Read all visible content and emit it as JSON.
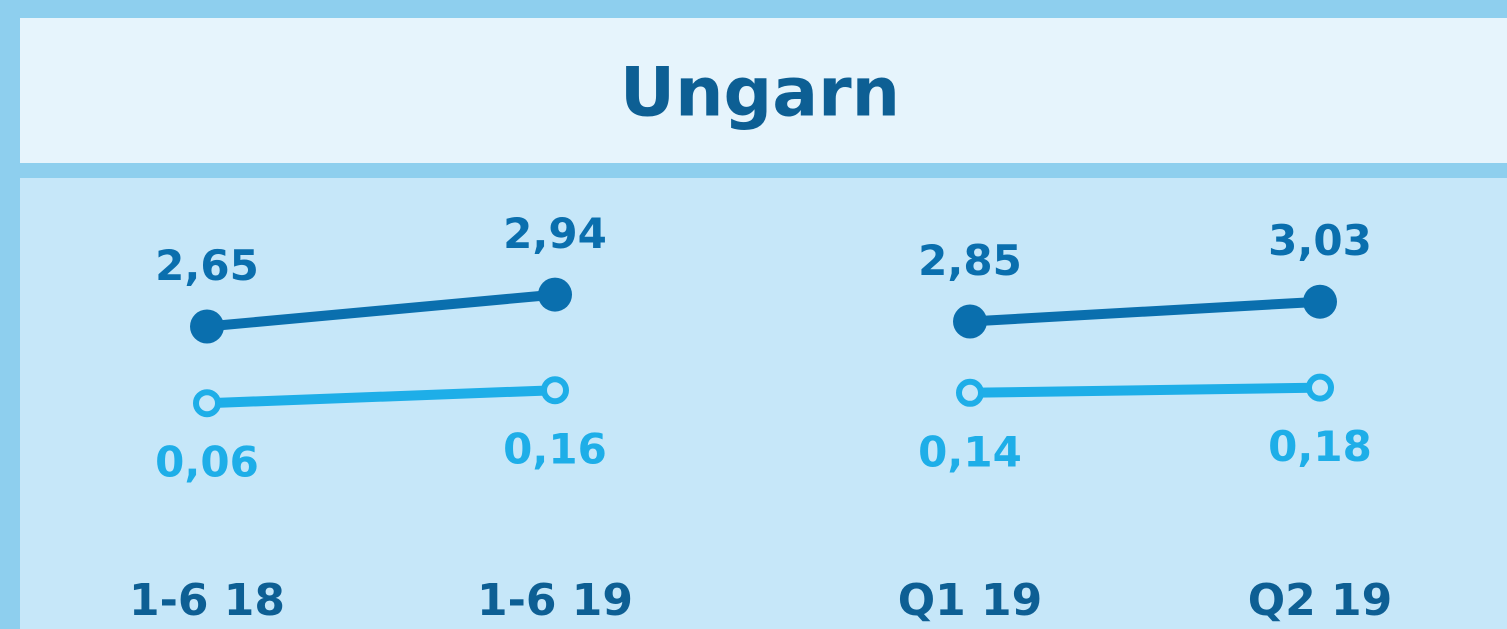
{
  "title": "Ungarn",
  "chart_data": [
    {
      "type": "line",
      "categories": [
        "1-6 18",
        "1-6 19"
      ],
      "series": [
        {
          "color": "#0a6fae",
          "values": [
            2.65,
            2.94
          ],
          "value_labels": [
            "2,65",
            "2,94"
          ],
          "marker": "filled"
        },
        {
          "color": "#1eaee8",
          "values": [
            0.06,
            0.16
          ],
          "value_labels": [
            "0,06",
            "0,16"
          ],
          "marker": "open"
        }
      ]
    },
    {
      "type": "line",
      "categories": [
        "Q1 19",
        "Q2 19"
      ],
      "series": [
        {
          "color": "#0a6fae",
          "values": [
            2.85,
            3.03
          ],
          "value_labels": [
            "2,85",
            "3,03"
          ],
          "marker": "filled"
        },
        {
          "color": "#1eaee8",
          "values": [
            0.14,
            0.18
          ],
          "value_labels": [
            "0,14",
            "0,18"
          ],
          "marker": "open"
        }
      ]
    }
  ]
}
